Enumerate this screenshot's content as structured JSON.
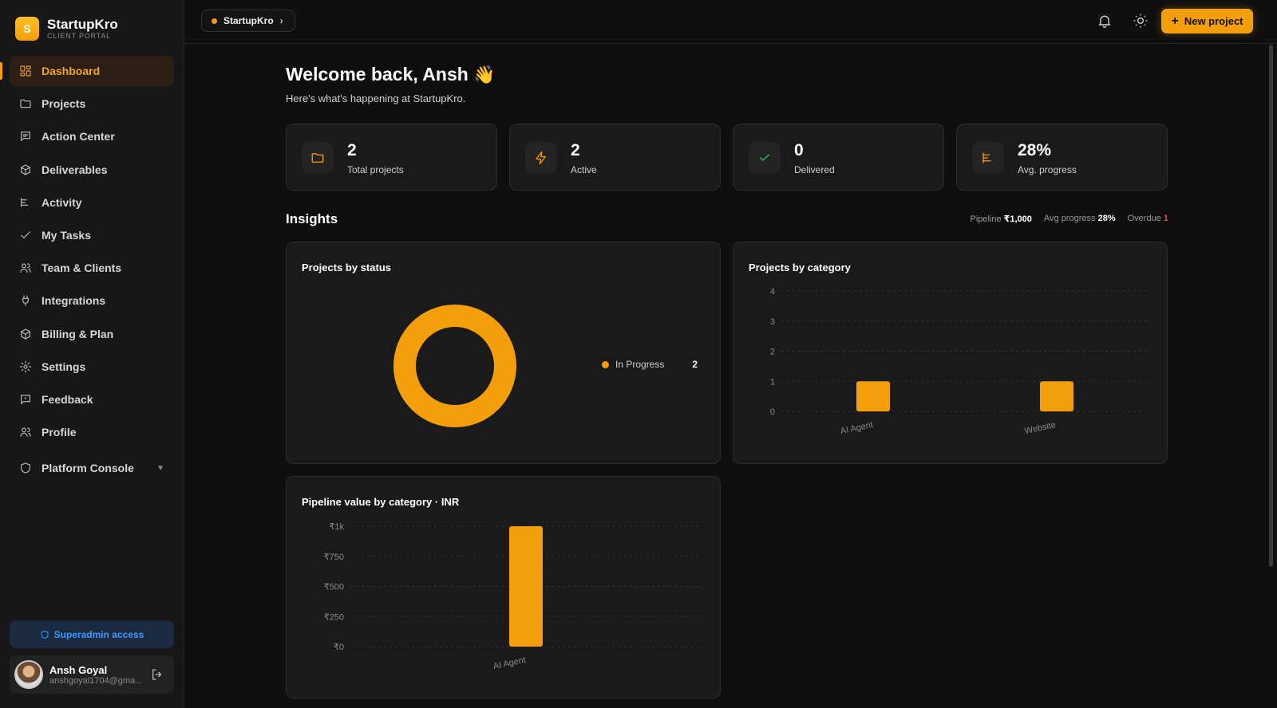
{
  "brand": {
    "logo_letter": "S",
    "name": "StartupKro",
    "subtitle": "CLIENT PORTAL"
  },
  "sidebar": {
    "items": [
      {
        "label": "Dashboard",
        "icon": "dashboard-grid-icon",
        "active": true
      },
      {
        "label": "Projects",
        "icon": "folder-icon"
      },
      {
        "label": "Action Center",
        "icon": "message-square-icon"
      },
      {
        "label": "Deliverables",
        "icon": "box-icon"
      },
      {
        "label": "Activity",
        "icon": "activity-list-icon"
      },
      {
        "label": "My Tasks",
        "icon": "check-icon"
      },
      {
        "label": "Team & Clients",
        "icon": "users-icon"
      },
      {
        "label": "Integrations",
        "icon": "plug-icon"
      },
      {
        "label": "Billing & Plan",
        "icon": "box-icon"
      },
      {
        "label": "Settings",
        "icon": "gear-icon"
      },
      {
        "label": "Feedback",
        "icon": "message-square-icon"
      },
      {
        "label": "Profile",
        "icon": "users-icon"
      }
    ],
    "console": {
      "label": "Platform Console",
      "icon": "shield-icon"
    },
    "superadmin": "Superadmin access",
    "user": {
      "name": "Ansh Goyal",
      "email": "anshgoyal1704@gma..."
    }
  },
  "topbar": {
    "workspace": "StartupKro",
    "new_project": "New project",
    "icons": [
      "bell-icon",
      "sun-icon",
      "plus-icon"
    ]
  },
  "welcome": {
    "title": "Welcome back, Ansh",
    "emoji": "👋",
    "subtitle": "Here's what's happening at StartupKro."
  },
  "stats": [
    {
      "value": "2",
      "label": "Total projects",
      "icon": "folder-icon",
      "color": "#f59e0b"
    },
    {
      "value": "2",
      "label": "Active",
      "icon": "bolt-icon",
      "color": "#f59e0b"
    },
    {
      "value": "0",
      "label": "Delivered",
      "icon": "check-icon",
      "color": "#22c55e"
    },
    {
      "value": "28%",
      "label": "Avg. progress",
      "icon": "activity-list-icon",
      "color": "#f59e0b"
    }
  ],
  "insights": {
    "title": "Insights",
    "pipeline_label": "Pipeline",
    "pipeline_value": "₹1,000",
    "avg_label": "Avg progress",
    "avg_value": "28%",
    "overdue_label": "Overdue",
    "overdue_value": "1"
  },
  "colors": {
    "accent": "#f59e0b",
    "accent_light": "#fbbf24",
    "danger": "#ef4444",
    "success": "#22c55e",
    "info": "#3b9bff"
  },
  "chart_data": [
    {
      "type": "pie",
      "title": "Projects by status",
      "donut": true,
      "categories": [
        "In Progress"
      ],
      "values": [
        2
      ],
      "legend": "right"
    },
    {
      "type": "bar",
      "title": "Projects by category",
      "categories": [
        "AI Agent",
        "Website"
      ],
      "values": [
        1,
        1
      ],
      "ylim": [
        0,
        4
      ],
      "yticks": [
        "0",
        "1",
        "2",
        "3",
        "4"
      ],
      "grid": true
    },
    {
      "type": "bar",
      "title": "Pipeline value by category · INR",
      "categories": [
        "AI Agent"
      ],
      "values": [
        1000
      ],
      "ylim": [
        0,
        1000
      ],
      "yticks": [
        "₹0",
        "₹250",
        "₹500",
        "₹750",
        "₹1k"
      ],
      "grid": true
    }
  ]
}
